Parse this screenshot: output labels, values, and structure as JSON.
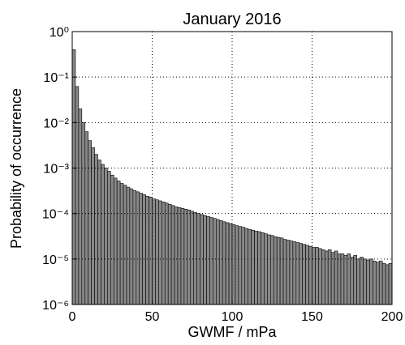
{
  "chart_data": {
    "type": "histogram",
    "title": "January 2016",
    "x_label": "GWMF / mPa",
    "y_label": "Probability of occurrence",
    "bins": [
      0,
      2,
      4,
      6,
      8,
      10,
      12,
      14,
      16,
      18,
      20,
      22,
      24,
      26,
      28,
      30,
      32,
      34,
      36,
      38,
      40,
      42,
      44,
      46,
      48,
      50,
      52,
      54,
      56,
      58,
      60,
      62,
      64,
      66,
      68,
      70,
      72,
      74,
      76,
      78,
      80,
      82,
      84,
      86,
      88,
      90,
      92,
      94,
      96,
      98,
      100,
      102,
      104,
      106,
      108,
      110,
      112,
      114,
      116,
      118,
      120,
      122,
      124,
      126,
      128,
      130,
      132,
      134,
      136,
      138,
      140,
      142,
      144,
      146,
      148,
      150,
      152,
      154,
      156,
      158,
      160,
      162,
      164,
      166,
      168,
      170,
      172,
      174,
      176,
      178,
      180,
      182,
      184,
      186,
      188,
      190,
      192,
      194,
      196,
      198,
      200
    ],
    "values": [
      0.4,
      0.062,
      0.02,
      0.01,
      0.0063,
      0.004,
      0.0028,
      0.002,
      0.0015,
      0.0012,
      0.001,
      0.00085,
      0.0007,
      0.0006,
      0.00052,
      0.00046,
      0.00042,
      0.00038,
      0.00035,
      0.00032,
      0.0003,
      0.00028,
      0.00026,
      0.00024,
      0.00023,
      0.00021,
      0.0002,
      0.00019,
      0.00018,
      0.00017,
      0.00016,
      0.00015,
      0.00014,
      0.000135,
      0.00013,
      0.000125,
      0.00012,
      0.000112,
      0.000105,
      0.0001,
      9.5e-05,
      9e-05,
      8.6e-05,
      8.2e-05,
      7.8e-05,
      7.4e-05,
      7e-05,
      6.6e-05,
      6.3e-05,
      6e-05,
      5.7e-05,
      5.4e-05,
      5.2e-05,
      5e-05,
      4.7e-05,
      4.5e-05,
      4.3e-05,
      4.1e-05,
      4e-05,
      3.8e-05,
      3.6e-05,
      3.4e-05,
      3.3e-05,
      3.1e-05,
      3e-05,
      2.9e-05,
      2.7e-05,
      2.6e-05,
      2.5e-05,
      2.4e-05,
      2.3e-05,
      2.2e-05,
      2.1e-05,
      2e-05,
      1.9e-05,
      1.8e-05,
      1.8e-05,
      1.7e-05,
      1.6e-05,
      1.5e-05,
      1.6e-05,
      1.4e-05,
      1.5e-05,
      1.3e-05,
      1.3e-05,
      1.2e-05,
      1.3e-05,
      1.1e-05,
      1.2e-05,
      1e-05,
      1.1e-05,
      1e-05,
      9.5e-06,
      1e-05,
      9e-06,
      8.5e-06,
      9e-06,
      8e-06,
      7.5e-06,
      8e-06
    ],
    "color": "#888888",
    "edge_color": "#000000",
    "xlim": [
      0,
      200
    ],
    "xticks": [
      0,
      50,
      100,
      150,
      200
    ],
    "ylim": [
      1e-06,
      1
    ],
    "log_y": true,
    "yticks": [
      {
        "value": 1e-06,
        "label": "10⁻⁶"
      },
      {
        "value": 1e-05,
        "label": "10⁻⁵"
      },
      {
        "value": 0.0001,
        "label": "10⁻⁴"
      },
      {
        "value": 0.001,
        "label": "10⁻³"
      },
      {
        "value": 0.01,
        "label": "10⁻²"
      },
      {
        "value": 0.1,
        "label": "10⁻¹"
      },
      {
        "value": 1,
        "label": "10⁰"
      }
    ],
    "grid": true
  }
}
